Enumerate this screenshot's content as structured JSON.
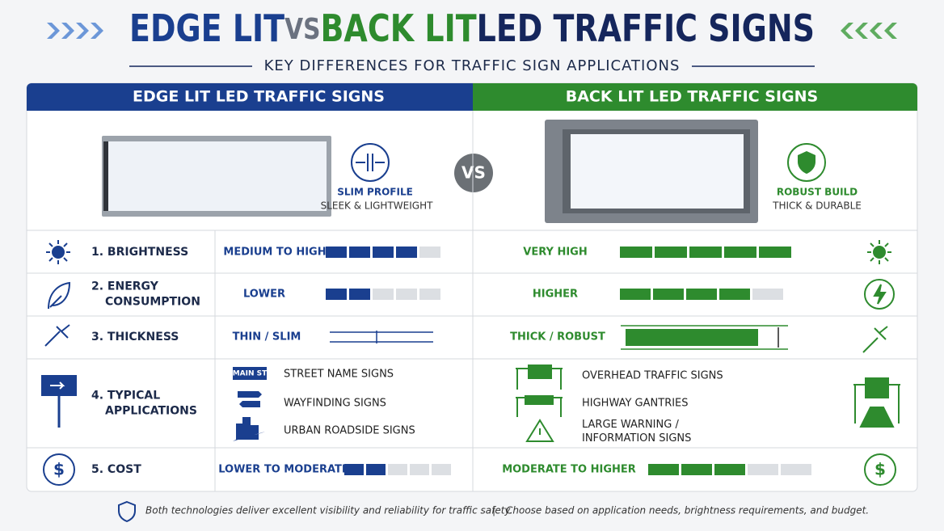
{
  "header": {
    "title_edge": "EDGE LIT",
    "title_vs": "VS",
    "title_back": "BACK LIT",
    "title_rest": "LED TRAFFIC SIGNS",
    "subtitle": "KEY DIFFERENCES FOR TRAFFIC SIGN APPLICATIONS"
  },
  "columns": [
    {
      "heading": "EDGE LIT LED TRAFFIC SIGNS",
      "feature_title": "SLIM PROFILE",
      "feature_desc": "SLEEK & LIGHTWEIGHT"
    },
    {
      "heading": "BACK LIT LED TRAFFIC SIGNS",
      "feature_title": "ROBUST BUILD",
      "feature_desc": "THICK & DURABLE"
    }
  ],
  "vs_badge": "VS",
  "rating_max": 5,
  "rows": [
    {
      "label": [
        "1. BRIGHTNESS"
      ],
      "edge": {
        "text": "MEDIUM TO HIGH",
        "rating": 4
      },
      "back": {
        "text": "VERY HIGH",
        "rating": 5
      }
    },
    {
      "label": [
        "2. ENERGY",
        "CONSUMPTION"
      ],
      "edge": {
        "text": "LOWER",
        "rating": 2
      },
      "back": {
        "text": "HIGHER",
        "rating": 4
      }
    },
    {
      "label": [
        "3. THICKNESS"
      ],
      "edge": {
        "text": "THIN / SLIM"
      },
      "back": {
        "text": "THICK / ROBUST"
      }
    },
    {
      "label": [
        "4. TYPICAL",
        "APPLICATIONS"
      ],
      "edge": {
        "icon_text": "MAIN ST",
        "items": [
          "STREET NAME SIGNS",
          "WAYFINDING SIGNS",
          "URBAN ROADSIDE SIGNS"
        ]
      },
      "back": {
        "items": [
          "OVERHEAD TRAFFIC SIGNS",
          "HIGHWAY GANTRIES",
          "LARGE WARNING / INFORMATION SIGNS"
        ]
      }
    },
    {
      "label": [
        "5. COST"
      ],
      "edge": {
        "text": "LOWER TO MODERATE",
        "rating": 2
      },
      "back": {
        "text": "MODERATE TO HIGHER",
        "rating": 3
      }
    }
  ],
  "footer": {
    "note1": "Both technologies deliver excellent visibility and reliability for traffic safety.",
    "separator": "|",
    "note2": "Choose based on application needs, brightness requirements, and budget."
  }
}
